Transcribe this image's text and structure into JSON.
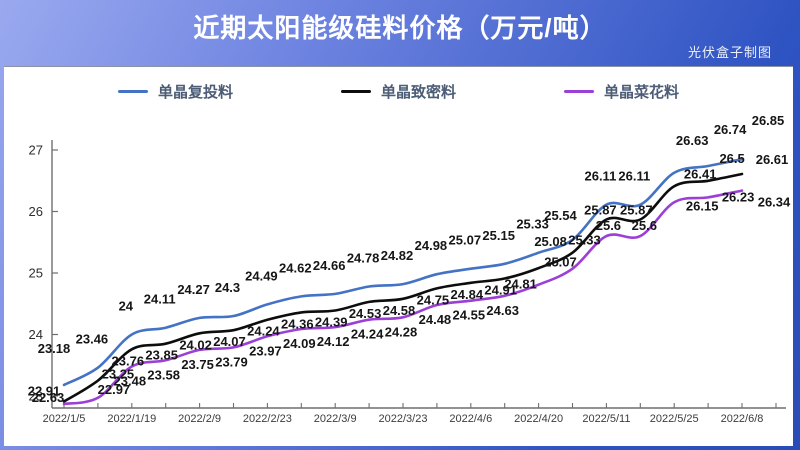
{
  "header": {
    "title": "近期太阳能级硅料价格（万元/吨）",
    "credit": "光伏盒子制图"
  },
  "colors": {
    "header_gradient_start": "#9aa9ef",
    "header_gradient_end": "#2a4cb5",
    "panel_background": "#ffffff",
    "axis": "#6f6f6f",
    "data_label": "#161616",
    "legend_text": "#4d5c77"
  },
  "chart_data": {
    "type": "line",
    "title": "近期太阳能级硅料价格（万元/吨）",
    "xlabel": "",
    "ylabel": "",
    "grid": false,
    "legend_position": "top",
    "smooth_lines": true,
    "y_ticks": [
      23,
      24,
      25,
      26,
      27
    ],
    "ylim": [
      22.6,
      27.4
    ],
    "x_tick_labels": [
      "2022/1/5",
      "2022/1/19",
      "2022/2/9",
      "2022/2/23",
      "2022/3/9",
      "2022/3/23",
      "2022/4/6",
      "2022/4/20",
      "2022/5/11",
      "2022/5/25",
      "2022/6/8"
    ],
    "series": [
      {
        "name": "单晶复投料",
        "color": "#4472c4",
        "values": [
          23.18,
          23.46,
          24,
          24.11,
          24.27,
          24.3,
          24.49,
          24.62,
          24.66,
          24.78,
          24.82,
          24.98,
          25.07,
          25.15,
          25.33,
          25.54,
          26.11,
          26.11,
          26.63,
          26.74,
          26.85
        ]
      },
      {
        "name": "单晶致密料",
        "color": "#0d0d0d",
        "values": [
          22.91,
          23.25,
          23.76,
          23.85,
          24.02,
          24.07,
          24.24,
          24.36,
          24.39,
          24.53,
          24.58,
          24.75,
          24.84,
          24.91,
          25.08,
          25.33,
          25.87,
          25.87,
          26.41,
          26.5,
          26.61
        ]
      },
      {
        "name": "单晶菜花料",
        "color": "#9b3fd6",
        "values": [
          22.63,
          22.97,
          23.48,
          23.58,
          23.75,
          23.79,
          23.97,
          24.09,
          24.12,
          24.24,
          24.28,
          24.48,
          24.55,
          24.63,
          24.81,
          25.07,
          25.6,
          25.6,
          26.15,
          26.23,
          26.34
        ]
      }
    ]
  }
}
